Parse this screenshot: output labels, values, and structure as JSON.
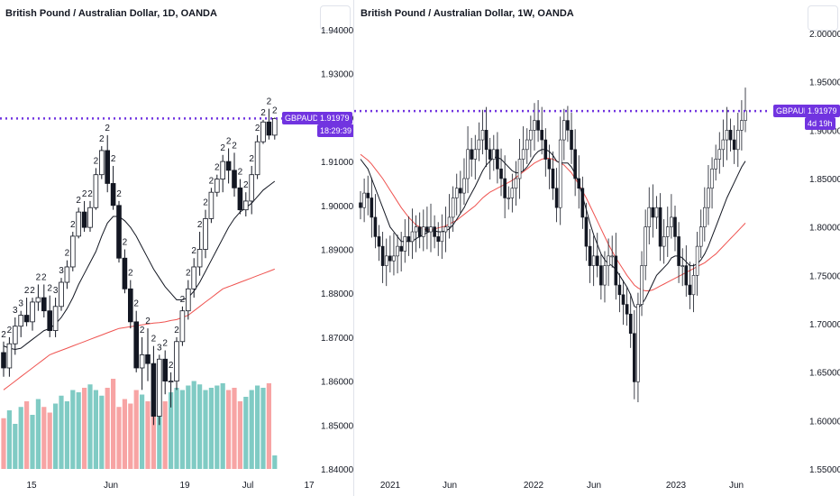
{
  "left": {
    "title": "British Pound / Australian Dollar, 1D, OANDA",
    "symbol": "GBPAUD",
    "price": "1.91979",
    "countdown": "18:29:39"
  },
  "right": {
    "title": "British Pound / Australian Dollar, 1W, OANDA",
    "symbol": "GBPAUD",
    "price": "1.91979",
    "countdown": "4d 19h"
  },
  "colors": {
    "up": "#26a69a",
    "down": "#ef5350",
    "vol_up": "#80cbc4",
    "vol_down": "#f7a4a4",
    "ma_short": "#131722",
    "ma_long": "#ef5350",
    "price_line": "#7134e0"
  },
  "chart_data": [
    {
      "type": "candlestick",
      "title": "British Pound / Australian Dollar, 1D, OANDA",
      "ylim": [
        1.84,
        1.94
      ],
      "y_ticks": [
        "1.94000",
        "1.93000",
        "1.92000",
        "1.91000",
        "1.90000",
        "1.89000",
        "1.88000",
        "1.87000",
        "1.86000",
        "1.85000",
        "1.84000"
      ],
      "x_ticks": [
        "15",
        "Jun",
        "19",
        "Jul",
        "17"
      ],
      "last_price": 1.91979,
      "candles": [
        [
          1.8665,
          1.869,
          1.861,
          1.863
        ],
        [
          1.863,
          1.87,
          1.861,
          1.8685
        ],
        [
          1.8685,
          1.8745,
          1.866,
          1.8725
        ],
        [
          1.8725,
          1.876,
          1.87,
          1.875
        ],
        [
          1.875,
          1.879,
          1.8725,
          1.8735
        ],
        [
          1.8735,
          1.879,
          1.8715,
          1.878
        ],
        [
          1.878,
          1.882,
          1.876,
          1.879
        ],
        [
          1.879,
          1.882,
          1.8745,
          1.876
        ],
        [
          1.876,
          1.8795,
          1.87,
          1.8715
        ],
        [
          1.8715,
          1.879,
          1.87,
          1.877
        ],
        [
          1.877,
          1.8835,
          1.876,
          1.8825
        ],
        [
          1.8825,
          1.8875,
          1.881,
          1.886
        ],
        [
          1.886,
          1.894,
          1.885,
          1.893
        ],
        [
          1.893,
          1.8995,
          1.8925,
          1.8985
        ],
        [
          1.8985,
          1.901,
          1.894,
          1.895
        ],
        [
          1.895,
          1.901,
          1.894,
          1.8995
        ],
        [
          1.8995,
          1.9085,
          1.899,
          1.907
        ],
        [
          1.907,
          1.9135,
          1.906,
          1.9125
        ],
        [
          1.9125,
          1.916,
          1.903,
          1.905
        ],
        [
          1.905,
          1.909,
          1.899,
          1.9
        ],
        [
          1.9,
          1.901,
          1.887,
          1.888
        ],
        [
          1.888,
          1.89,
          1.88,
          1.881
        ],
        [
          1.881,
          1.883,
          1.872,
          1.8735
        ],
        [
          1.8735,
          1.876,
          1.862,
          1.863
        ],
        [
          1.863,
          1.87,
          1.858,
          1.866
        ],
        [
          1.866,
          1.872,
          1.86,
          1.864
        ],
        [
          1.864,
          1.868,
          1.85,
          1.852
        ],
        [
          1.852,
          1.866,
          1.85,
          1.865
        ],
        [
          1.865,
          1.867,
          1.857,
          1.86
        ],
        [
          1.86,
          1.862,
          1.854,
          1.86
        ],
        [
          1.86,
          1.87,
          1.858,
          1.869
        ],
        [
          1.869,
          1.877,
          1.868,
          1.876
        ],
        [
          1.876,
          1.883,
          1.874,
          1.881
        ],
        [
          1.881,
          1.888,
          1.879,
          1.886
        ],
        [
          1.886,
          1.894,
          1.884,
          1.89
        ],
        [
          1.89,
          1.899,
          1.888,
          1.897
        ],
        [
          1.897,
          1.904,
          1.896,
          1.903
        ],
        [
          1.903,
          1.907,
          1.902,
          1.906
        ],
        [
          1.906,
          1.9115,
          1.903,
          1.91
        ],
        [
          1.91,
          1.913,
          1.905,
          1.908
        ],
        [
          1.908,
          1.912,
          1.902,
          1.904
        ],
        [
          1.904,
          1.906,
          1.898,
          1.899
        ],
        [
          1.899,
          1.903,
          1.8975,
          1.901
        ],
        [
          1.901,
          1.909,
          1.898,
          1.907
        ],
        [
          1.907,
          1.916,
          1.906,
          1.9145
        ],
        [
          1.9145,
          1.9195,
          1.914,
          1.919
        ],
        [
          1.919,
          1.922,
          1.915,
          1.916
        ],
        [
          1.916,
          1.92,
          1.915,
          1.9198
        ]
      ],
      "ma_short": [
        1.868,
        1.8675,
        1.8672,
        1.8675,
        1.8685,
        1.8695,
        1.8705,
        1.8715,
        1.872,
        1.873,
        1.8745,
        1.8765,
        1.879,
        1.882,
        1.8845,
        1.887,
        1.8895,
        1.893,
        1.896,
        1.8975,
        1.8975,
        1.8965,
        1.895,
        1.893,
        1.8905,
        1.888,
        1.8855,
        1.8835,
        1.8815,
        1.88,
        1.8785,
        1.8785,
        1.879,
        1.8805,
        1.8825,
        1.885,
        1.8875,
        1.89,
        1.8925,
        1.895,
        1.897,
        1.8985,
        1.8995,
        1.9005,
        1.902,
        1.9035,
        1.9045,
        1.9055
      ],
      "ma_long": [
        1.858,
        1.859,
        1.86,
        1.861,
        1.862,
        1.863,
        1.864,
        1.865,
        1.866,
        1.8665,
        1.867,
        1.8675,
        1.868,
        1.8685,
        1.869,
        1.8695,
        1.87,
        1.8705,
        1.871,
        1.8715,
        1.872,
        1.8722,
        1.8724,
        1.8726,
        1.8728,
        1.873,
        1.8732,
        1.8733,
        1.8735,
        1.8738,
        1.874,
        1.8745,
        1.875,
        1.876,
        1.877,
        1.878,
        1.879,
        1.88,
        1.881,
        1.8815,
        1.882,
        1.8825,
        1.883,
        1.8835,
        1.884,
        1.8845,
        1.885,
        1.8855
      ],
      "volume": [
        0.45,
        0.52,
        0.4,
        0.55,
        0.6,
        0.48,
        0.62,
        0.55,
        0.5,
        0.58,
        0.65,
        0.6,
        0.7,
        0.68,
        0.72,
        0.75,
        0.7,
        0.65,
        0.72,
        0.8,
        0.55,
        0.62,
        0.58,
        0.7,
        0.66,
        0.6,
        0.55,
        0.64,
        0.6,
        0.68,
        0.72,
        0.7,
        0.74,
        0.78,
        0.75,
        0.7,
        0.72,
        0.74,
        0.76,
        0.7,
        0.72,
        0.6,
        0.64,
        0.7,
        0.74,
        0.72,
        0.76,
        0.12
      ],
      "markers": [
        "2",
        "2",
        "3",
        "3",
        "2",
        "2",
        "2",
        "2",
        "2",
        "3",
        "3",
        "2",
        "2",
        "2",
        "2",
        "2",
        "2",
        "2",
        "2",
        "2",
        "2",
        "2",
        "2",
        "2",
        "2",
        "2",
        "2",
        "3",
        "2",
        "2",
        "2",
        "2",
        "2",
        "2",
        "2",
        "2",
        "2",
        "2",
        "2",
        "2",
        "2",
        "2",
        "2",
        "2",
        "2",
        "2",
        "2",
        "2"
      ]
    },
    {
      "type": "candlestick",
      "title": "British Pound / Australian Dollar, 1W, OANDA",
      "ylim": [
        1.55,
        2.0
      ],
      "y_ticks": [
        "2.00000",
        "1.95000",
        "1.90000",
        "1.85000",
        "1.80000",
        "1.75000",
        "1.70000",
        "1.65000",
        "1.60000",
        "1.55000"
      ],
      "x_ticks": [
        "2021",
        "Jun",
        "2022",
        "Jun",
        "2023",
        "Jun"
      ],
      "last_price": 1.91979,
      "closes": [
        1.82,
        1.835,
        1.83,
        1.81,
        1.79,
        1.78,
        1.76,
        1.77,
        1.765,
        1.77,
        1.78,
        1.775,
        1.79,
        1.785,
        1.795,
        1.8,
        1.79,
        1.8,
        1.795,
        1.8,
        1.79,
        1.785,
        1.795,
        1.8,
        1.81,
        1.83,
        1.84,
        1.835,
        1.85,
        1.88,
        1.87,
        1.88,
        1.89,
        1.9,
        1.88,
        1.87,
        1.88,
        1.86,
        1.85,
        1.83,
        1.83,
        1.84,
        1.85,
        1.87,
        1.88,
        1.89,
        1.9,
        1.91,
        1.9,
        1.89,
        1.87,
        1.86,
        1.84,
        1.82,
        1.89,
        1.91,
        1.9,
        1.88,
        1.85,
        1.84,
        1.81,
        1.78,
        1.76,
        1.77,
        1.76,
        1.74,
        1.76,
        1.77,
        1.77,
        1.74,
        1.73,
        1.72,
        1.71,
        1.69,
        1.64,
        1.72,
        1.76,
        1.8,
        1.82,
        1.81,
        1.82,
        1.78,
        1.79,
        1.8,
        1.81,
        1.79,
        1.76,
        1.76,
        1.74,
        1.73,
        1.75,
        1.78,
        1.8,
        1.82,
        1.84,
        1.86,
        1.87,
        1.88,
        1.89,
        1.9,
        1.89,
        1.88,
        1.9,
        1.91,
        1.92
      ],
      "ma_short": [
        1.87,
        1.865,
        1.86,
        1.85,
        1.84,
        1.83,
        1.82,
        1.81,
        1.8,
        1.795,
        1.79,
        1.785,
        1.785,
        1.785,
        1.785,
        1.788,
        1.79,
        1.792,
        1.794,
        1.796,
        1.796,
        1.795,
        1.795,
        1.796,
        1.798,
        1.802,
        1.808,
        1.814,
        1.82,
        1.828,
        1.835,
        1.842,
        1.85,
        1.858,
        1.864,
        1.868,
        1.872,
        1.872,
        1.87,
        1.866,
        1.862,
        1.858,
        1.856,
        1.856,
        1.858,
        1.862,
        1.868,
        1.874,
        1.878,
        1.88,
        1.88,
        1.878,
        1.874,
        1.868,
        1.866,
        1.866,
        1.866,
        1.862,
        1.855,
        1.845,
        1.832,
        1.818,
        1.804,
        1.792,
        1.782,
        1.772,
        1.766,
        1.762,
        1.76,
        1.756,
        1.75,
        1.744,
        1.738,
        1.73,
        1.718,
        1.716,
        1.72,
        1.726,
        1.734,
        1.742,
        1.75,
        1.754,
        1.758,
        1.762,
        1.768,
        1.77,
        1.77,
        1.768,
        1.764,
        1.76,
        1.76,
        1.762,
        1.766,
        1.772,
        1.78,
        1.79,
        1.8,
        1.81,
        1.82,
        1.83,
        1.838,
        1.846,
        1.854,
        1.862,
        1.868
      ],
      "ma_long": [
        1.875,
        1.872,
        1.869,
        1.865,
        1.86,
        1.855,
        1.85,
        1.844,
        1.838,
        1.832,
        1.826,
        1.82,
        1.815,
        1.81,
        1.806,
        1.802,
        1.8,
        1.798,
        1.797,
        1.797,
        1.798,
        1.799,
        1.8,
        1.801,
        1.803,
        1.805,
        1.807,
        1.81,
        1.813,
        1.816,
        1.819,
        1.822,
        1.826,
        1.83,
        1.833,
        1.836,
        1.838,
        1.84,
        1.842,
        1.844,
        1.846,
        1.848,
        1.851,
        1.854,
        1.857,
        1.86,
        1.863,
        1.866,
        1.868,
        1.87,
        1.871,
        1.871,
        1.87,
        1.868,
        1.866,
        1.864,
        1.86,
        1.856,
        1.85,
        1.844,
        1.837,
        1.83,
        1.822,
        1.814,
        1.806,
        1.798,
        1.79,
        1.782,
        1.775,
        1.768,
        1.762,
        1.756,
        1.75,
        1.745,
        1.74,
        1.737,
        1.735,
        1.734,
        1.734,
        1.735,
        1.737,
        1.739,
        1.741,
        1.743,
        1.745,
        1.747,
        1.749,
        1.751,
        1.753,
        1.755,
        1.757,
        1.759,
        1.761,
        1.763,
        1.766,
        1.769,
        1.772,
        1.776,
        1.78,
        1.784,
        1.788,
        1.792,
        1.796,
        1.8,
        1.804
      ]
    }
  ]
}
